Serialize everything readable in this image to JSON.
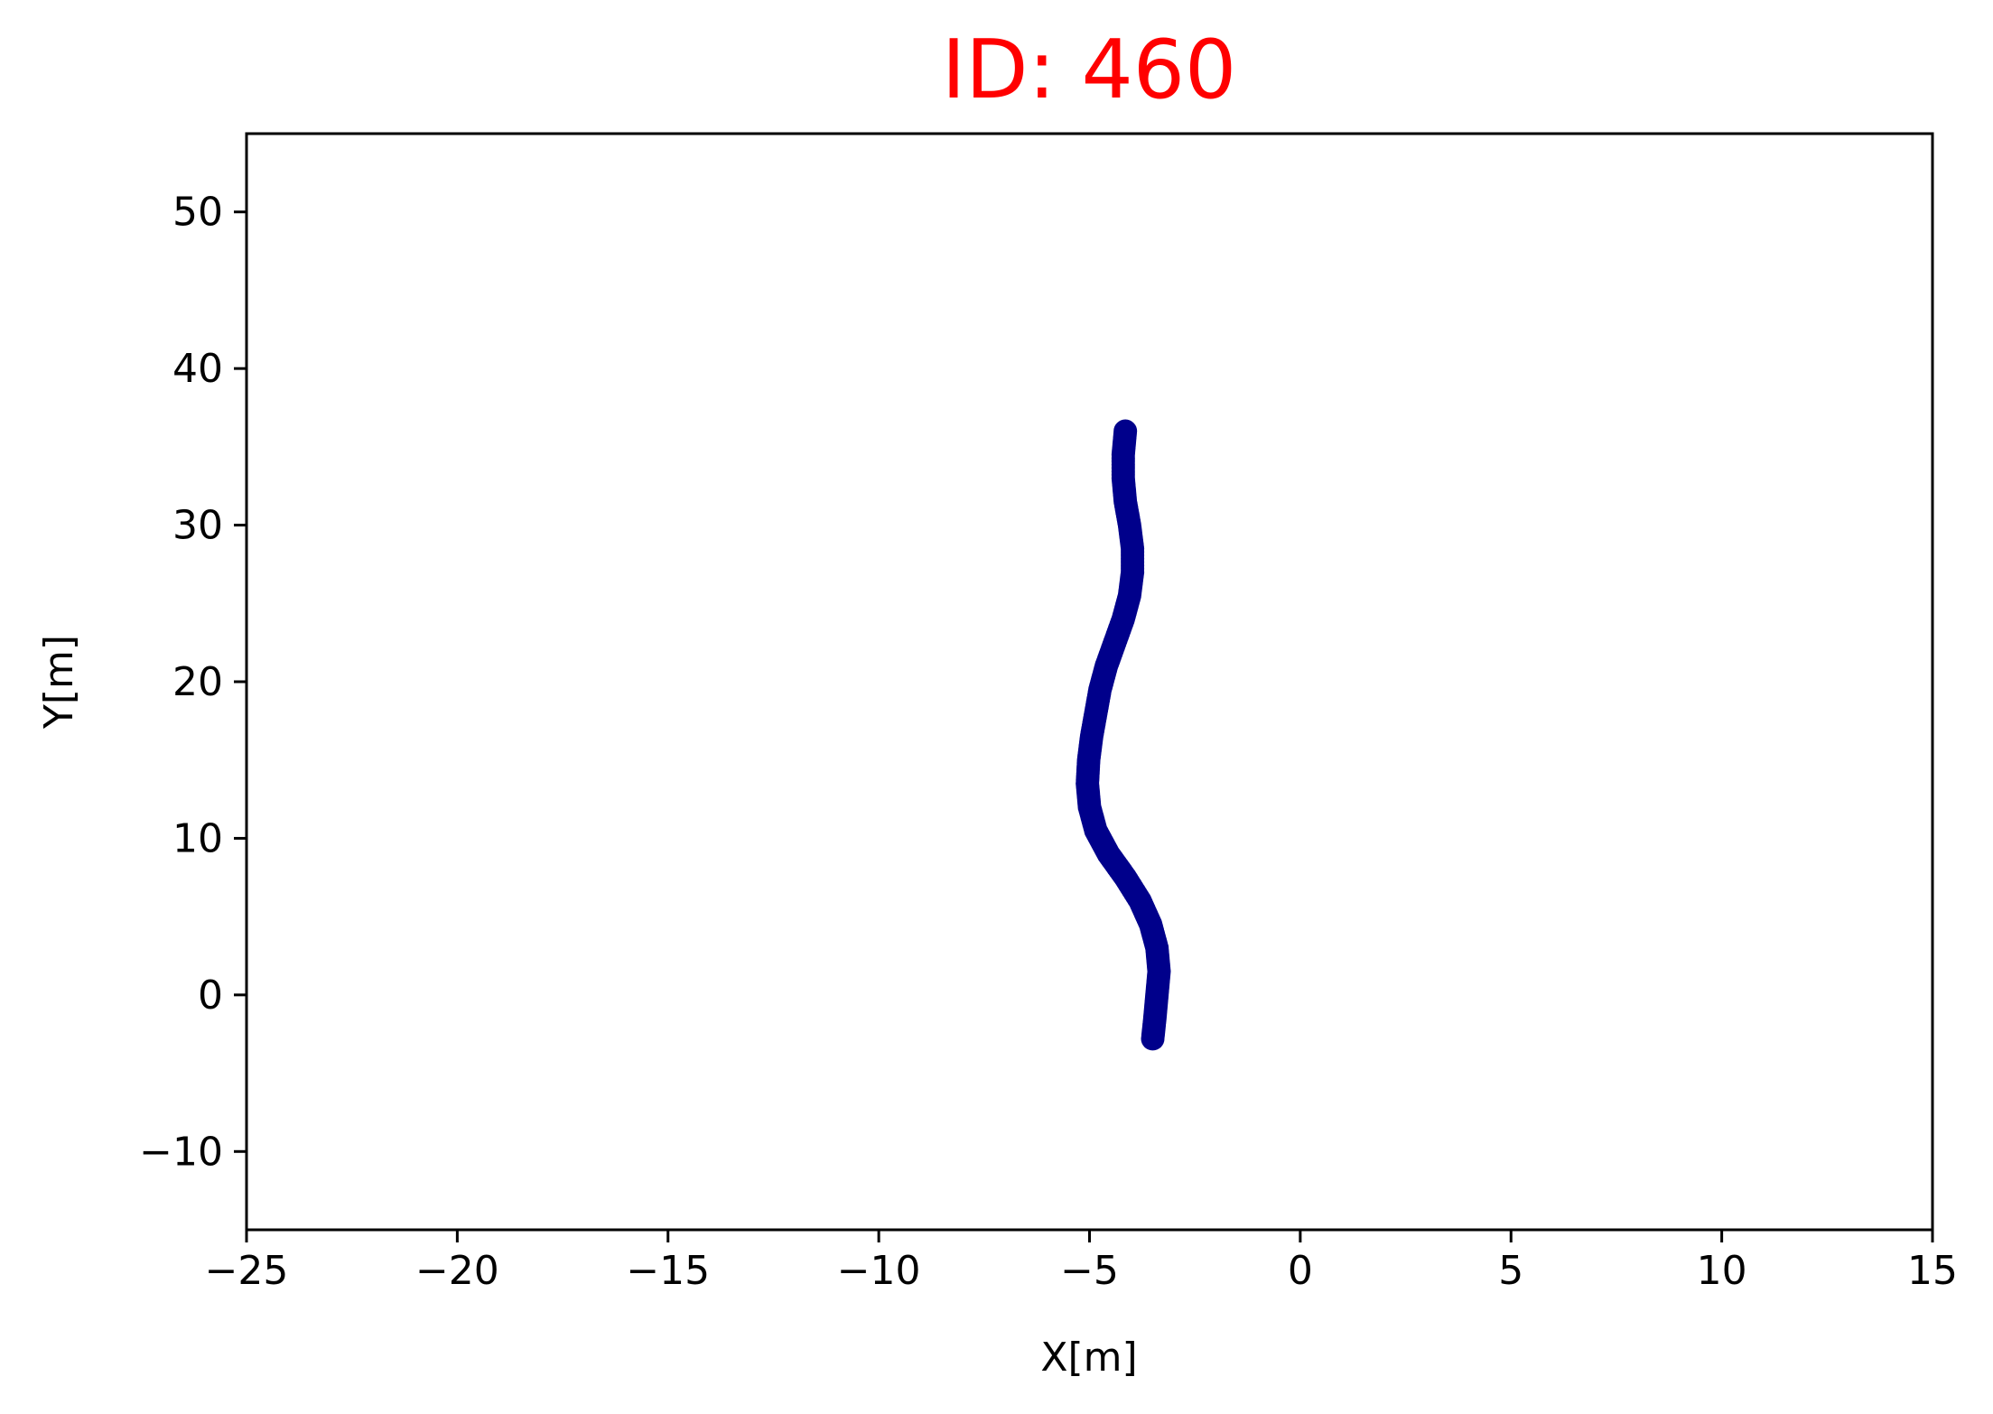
{
  "chart_data": {
    "type": "scatter",
    "title": "ID: 460",
    "title_color": "#ff0000",
    "xlabel": "X[m]",
    "ylabel": "Y[m]",
    "xlim": [
      -25,
      15
    ],
    "ylim": [
      -15,
      55
    ],
    "xticks": [
      -25,
      -20,
      -15,
      -10,
      -5,
      0,
      5,
      10,
      15
    ],
    "xtick_labels": [
      "−25",
      "−20",
      "−15",
      "−10",
      "−5",
      "0",
      "5",
      "10",
      "15"
    ],
    "yticks": [
      -10,
      0,
      10,
      20,
      30,
      40,
      50
    ],
    "ytick_labels": [
      "−10",
      "0",
      "10",
      "20",
      "30",
      "40",
      "50"
    ],
    "grid": false,
    "series": [
      {
        "color": "#00008b",
        "points": [
          [
            -3.5,
            -2.8
          ],
          [
            -3.45,
            -1.5
          ],
          [
            -3.4,
            0.0
          ],
          [
            -3.35,
            1.5
          ],
          [
            -3.4,
            3.0
          ],
          [
            -3.55,
            4.5
          ],
          [
            -3.8,
            6.0
          ],
          [
            -4.15,
            7.5
          ],
          [
            -4.55,
            9.0
          ],
          [
            -4.85,
            10.5
          ],
          [
            -5.0,
            12.0
          ],
          [
            -5.05,
            13.5
          ],
          [
            -5.02,
            15.0
          ],
          [
            -4.95,
            16.5
          ],
          [
            -4.85,
            18.0
          ],
          [
            -4.75,
            19.5
          ],
          [
            -4.6,
            21.0
          ],
          [
            -4.4,
            22.5
          ],
          [
            -4.2,
            24.0
          ],
          [
            -4.05,
            25.5
          ],
          [
            -3.98,
            27.0
          ],
          [
            -3.98,
            28.5
          ],
          [
            -4.05,
            30.0
          ],
          [
            -4.15,
            31.5
          ],
          [
            -4.2,
            33.0
          ],
          [
            -4.2,
            34.5
          ],
          [
            -4.15,
            36.0
          ]
        ]
      }
    ]
  }
}
